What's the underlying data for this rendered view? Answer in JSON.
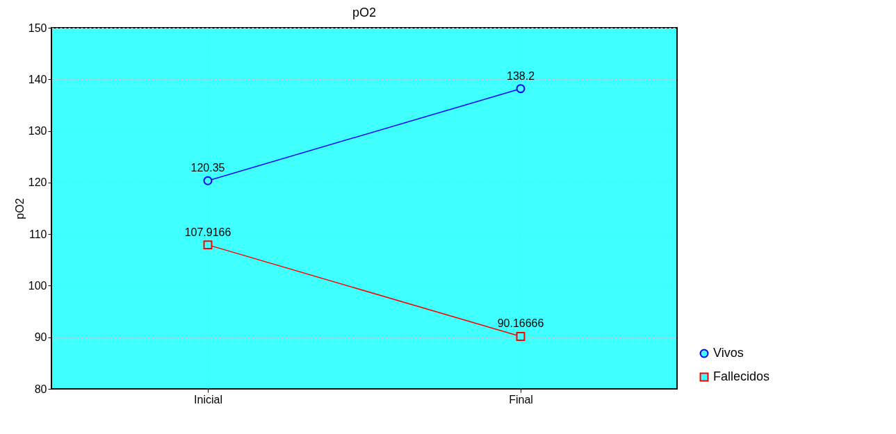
{
  "chart_data": {
    "type": "line",
    "title": "pO2",
    "ylabel": "pO2",
    "categories": [
      "Inicial",
      "Final"
    ],
    "series": [
      {
        "name": "Vivos",
        "color": "#0000ff",
        "values": [
          120.35,
          138.2
        ],
        "marker": "circle",
        "line_style": "solid"
      },
      {
        "name": "Fallecidos",
        "color": "#ff0000",
        "values": [
          107.9166,
          90.16666
        ],
        "marker": "square",
        "line_style": "solid"
      }
    ],
    "ylim": [
      80,
      150
    ],
    "yticks": [
      80,
      90,
      100,
      110,
      120,
      130,
      140,
      150
    ],
    "grid": true,
    "legend": "bottom right",
    "data_labels": true
  }
}
